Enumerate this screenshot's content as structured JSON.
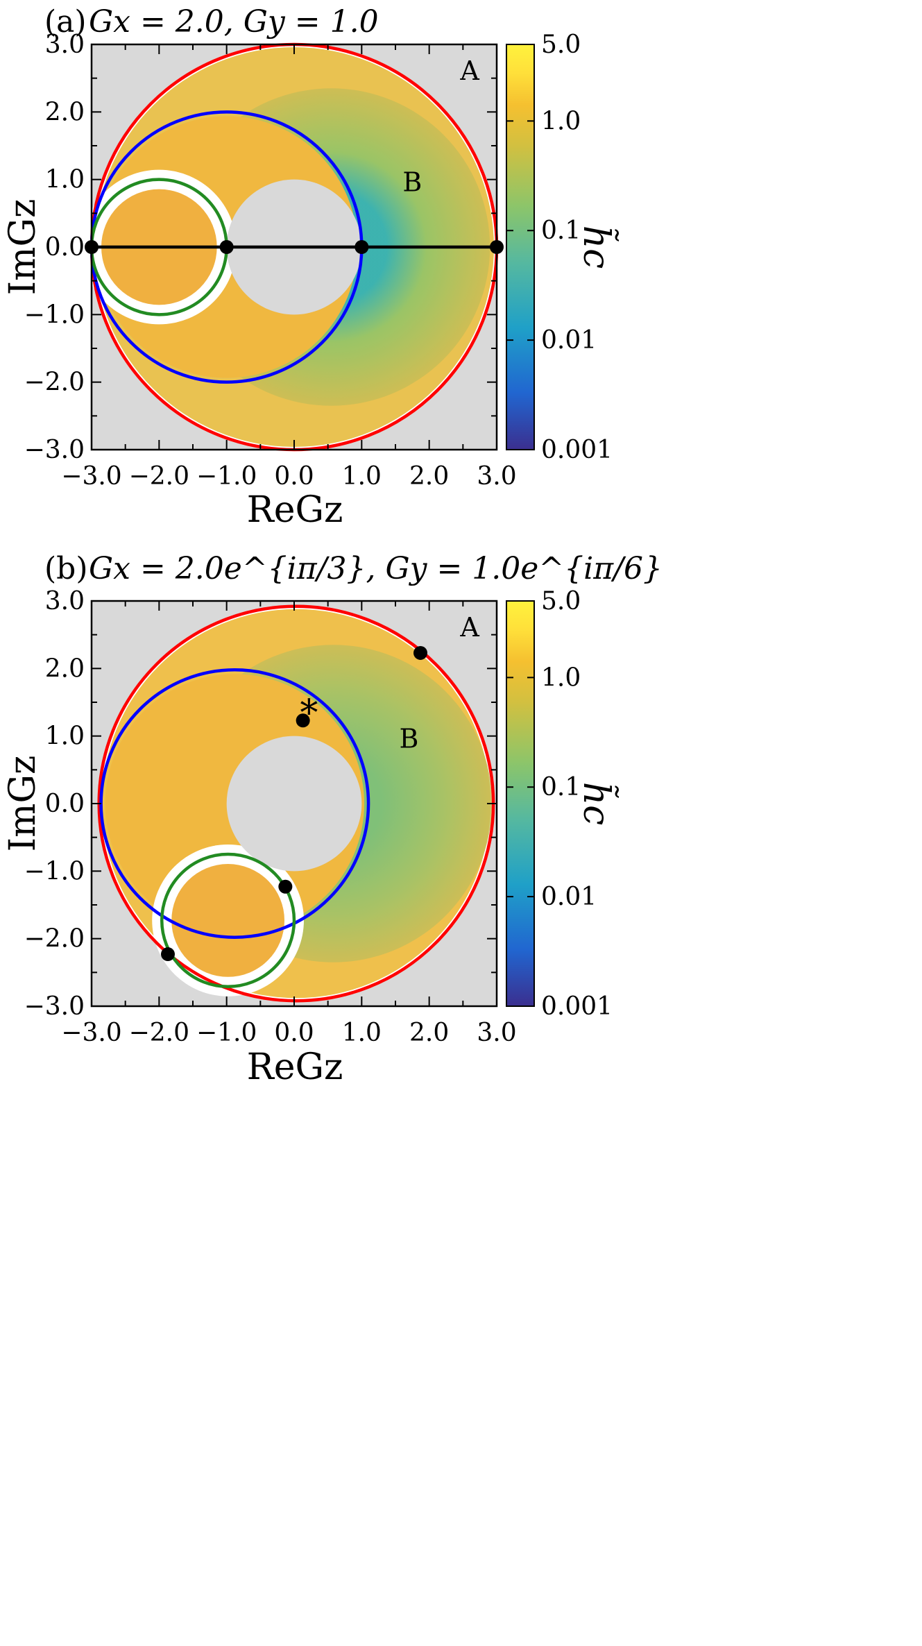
{
  "colors": {
    "background_region": "#d9d9d9",
    "outer_circle": "#ff0000",
    "middle_circle": "#0000ff",
    "inner_circle": "#228b22",
    "segment": "#000000",
    "marker": "#000000",
    "cmap": [
      "#3b2f8f",
      "#2166d0",
      "#1fa0c8",
      "#55b8a0",
      "#8cc56a",
      "#d2c040",
      "#f5c030",
      "#ffe03a",
      "#fff23d"
    ]
  },
  "chart_data": [
    {
      "type": "heatmap",
      "panel": "(a)",
      "title_label": "(a)",
      "title_math": "Gx = 2.0,  Gy = 1.0",
      "xlabel": "ReGz",
      "ylabel": "ImGz",
      "xlim": [
        -3.0,
        3.0
      ],
      "ylim": [
        -3.0,
        3.0
      ],
      "xticks": [
        "−3.0",
        "−2.0",
        "−1.0",
        "0.0",
        "1.0",
        "2.0",
        "3.0"
      ],
      "yticks": [
        "−3.0",
        "−2.0",
        "−1.0",
        "0.0",
        "1.0",
        "2.0",
        "3.0"
      ],
      "colorbar": {
        "label": "h̃c",
        "scale": "log",
        "range": [
          0.001,
          5.0
        ],
        "ticks": [
          "0.001",
          "0.01",
          "0.1",
          "1.0",
          "5.0"
        ]
      },
      "circles": [
        {
          "name": "outer",
          "center": [
            0.0,
            0.0
          ],
          "radius": 3.0
        },
        {
          "name": "middle",
          "center": [
            -1.0,
            0.0
          ],
          "radius": 2.0
        },
        {
          "name": "inner",
          "center": [
            -2.0,
            0.0
          ],
          "radius": 1.0
        }
      ],
      "segment": [
        [
          -3.0,
          0.0
        ],
        [
          3.0,
          0.0
        ]
      ],
      "points": [
        [
          -3.0,
          0.0
        ],
        [
          -1.0,
          0.0
        ],
        [
          1.0,
          0.0
        ],
        [
          3.0,
          0.0
        ]
      ],
      "hole": {
        "center": [
          0.0,
          0.0
        ],
        "radius": 1.0
      },
      "regions": [
        {
          "text": "A",
          "at": [
            2.6,
            2.6
          ]
        },
        {
          "text": "B",
          "at": [
            1.75,
            0.95
          ]
        }
      ]
    },
    {
      "type": "heatmap",
      "panel": "(b)",
      "title_label": "(b)",
      "title_math": "Gx = 2.0e^{iπ/3},  Gy = 1.0e^{iπ/6}",
      "xlabel": "ReGz",
      "ylabel": "ImGz",
      "xlim": [
        -3.0,
        3.0
      ],
      "ylim": [
        -3.0,
        3.0
      ],
      "xticks": [
        "−3.0",
        "−2.0",
        "−1.0",
        "0.0",
        "1.0",
        "2.0",
        "3.0"
      ],
      "yticks": [
        "−3.0",
        "−2.0",
        "−1.0",
        "0.0",
        "1.0",
        "2.0",
        "3.0"
      ],
      "colorbar": {
        "label": "h̃c",
        "scale": "log",
        "range": [
          0.001,
          5.0
        ],
        "ticks": [
          "0.001",
          "0.01",
          "0.1",
          "1.0",
          "5.0"
        ]
      },
      "circles": [
        {
          "name": "outer",
          "center": [
            0.03,
            0.0
          ],
          "radius": 2.92
        },
        {
          "name": "middle",
          "center": [
            -0.88,
            0.0
          ],
          "radius": 1.98
        },
        {
          "name": "inner",
          "center": [
            -0.98,
            -1.73
          ],
          "radius": 0.98
        }
      ],
      "points": [
        [
          1.87,
          2.23
        ],
        [
          0.13,
          1.23
        ],
        [
          -0.13,
          -1.23
        ],
        [
          -1.87,
          -2.23
        ]
      ],
      "star": {
        "text": "*",
        "at": [
          0.22,
          1.45
        ]
      },
      "hole": {
        "center": [
          0.0,
          0.0
        ],
        "radius": 1.0
      },
      "regions": [
        {
          "text": "A",
          "at": [
            2.6,
            2.6
          ]
        },
        {
          "text": "B",
          "at": [
            1.7,
            0.95
          ]
        }
      ]
    }
  ]
}
